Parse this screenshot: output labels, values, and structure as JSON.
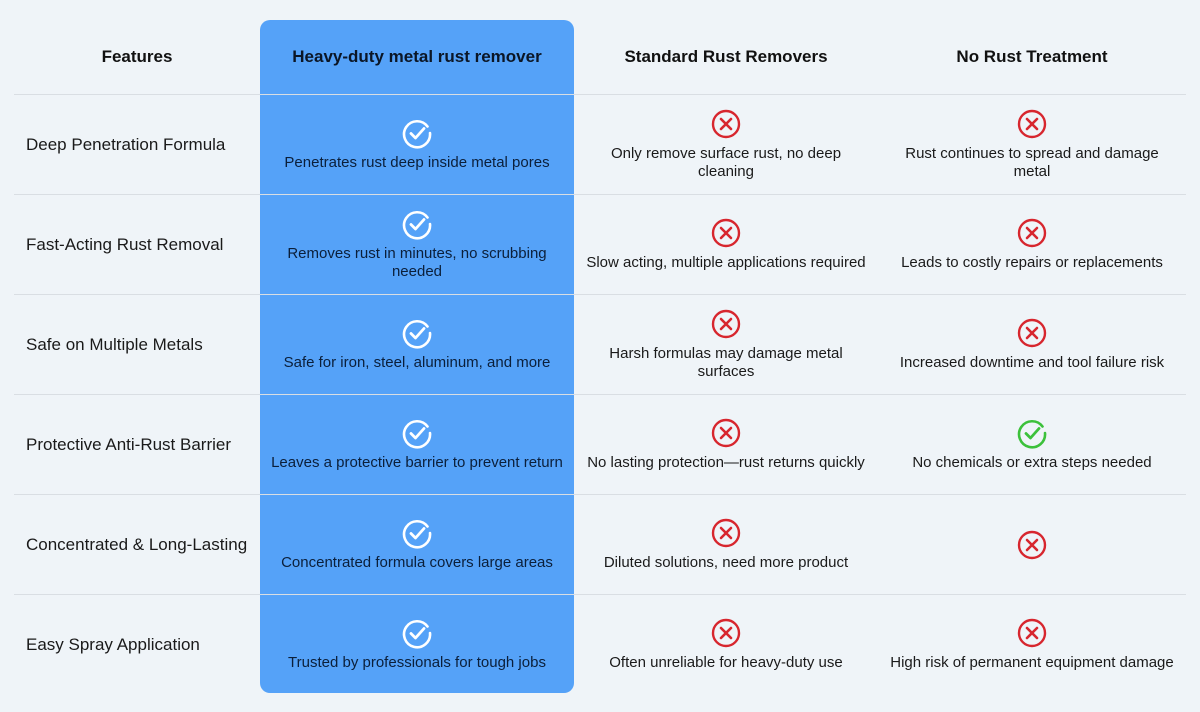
{
  "colors": {
    "highlight": "#55a2f8",
    "check_white": "#ffffff",
    "check_green": "#3cc13b",
    "cross_red": "#d7262e",
    "background": "#eff4f8"
  },
  "header": {
    "features": "Features",
    "product": "Heavy-duty metal rust remover",
    "standard": "Standard Rust Removers",
    "none": "No Rust Treatment"
  },
  "rows": [
    {
      "feature": "Deep Penetration Formula",
      "product": {
        "icon": "check-icon",
        "text": "Penetrates rust deep inside metal pores"
      },
      "standard": {
        "icon": "cross-icon",
        "text": "Only remove surface rust, no deep cleaning"
      },
      "none": {
        "icon": "cross-icon",
        "text": "Rust continues to spread and damage metal"
      }
    },
    {
      "feature": "Fast-Acting Rust Removal",
      "product": {
        "icon": "check-icon",
        "text": "Removes rust in minutes, no scrubbing needed"
      },
      "standard": {
        "icon": "cross-icon",
        "text": "Slow acting, multiple applications required"
      },
      "none": {
        "icon": "cross-icon",
        "text": "Leads to costly repairs or replacements"
      }
    },
    {
      "feature": "Safe on Multiple Metals",
      "product": {
        "icon": "check-icon",
        "text": "Safe for iron, steel, aluminum, and more"
      },
      "standard": {
        "icon": "cross-icon",
        "text": "Harsh formulas may damage metal surfaces"
      },
      "none": {
        "icon": "cross-icon",
        "text": "Increased downtime and tool failure risk"
      }
    },
    {
      "feature": "Protective Anti-Rust Barrier",
      "product": {
        "icon": "check-icon",
        "text": "Leaves a protective barrier to prevent return"
      },
      "standard": {
        "icon": "cross-icon",
        "text": "No lasting protection—rust returns quickly"
      },
      "none": {
        "icon": "check-green-icon",
        "text": "No chemicals or extra steps needed"
      }
    },
    {
      "feature": "Concentrated & Long-Lasting",
      "product": {
        "icon": "check-icon",
        "text": "Concentrated formula covers large areas"
      },
      "standard": {
        "icon": "cross-icon",
        "text": "Diluted solutions, need more product"
      },
      "none": {
        "icon": "cross-icon",
        "text": ""
      }
    },
    {
      "feature": "Easy Spray Application",
      "product": {
        "icon": "check-icon",
        "text": "Trusted by professionals for tough jobs"
      },
      "standard": {
        "icon": "cross-icon",
        "text": "Often unreliable for heavy-duty use"
      },
      "none": {
        "icon": "cross-icon",
        "text": "High risk of permanent equipment damage"
      }
    }
  ]
}
